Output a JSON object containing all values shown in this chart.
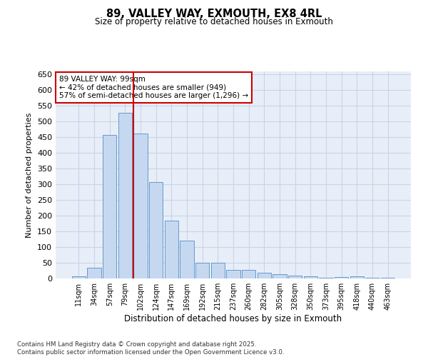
{
  "title": "89, VALLEY WAY, EXMOUTH, EX8 4RL",
  "subtitle": "Size of property relative to detached houses in Exmouth",
  "xlabel": "Distribution of detached houses by size in Exmouth",
  "ylabel": "Number of detached properties",
  "footer_line1": "Contains HM Land Registry data © Crown copyright and database right 2025.",
  "footer_line2": "Contains public sector information licensed under the Open Government Licence v3.0.",
  "categories": [
    "11sqm",
    "34sqm",
    "57sqm",
    "79sqm",
    "102sqm",
    "124sqm",
    "147sqm",
    "169sqm",
    "192sqm",
    "215sqm",
    "237sqm",
    "260sqm",
    "282sqm",
    "305sqm",
    "328sqm",
    "350sqm",
    "373sqm",
    "395sqm",
    "418sqm",
    "440sqm",
    "463sqm"
  ],
  "values": [
    7,
    35,
    457,
    528,
    463,
    308,
    184,
    120,
    50,
    50,
    27,
    27,
    18,
    13,
    9,
    6,
    2,
    5,
    7,
    2,
    3
  ],
  "bar_color": "#c5d8f0",
  "bar_edge_color": "#6699cc",
  "grid_color": "#c8d4e8",
  "background_color": "#e8eef8",
  "vline_color": "#cc0000",
  "vline_index": 4,
  "annotation_text": "89 VALLEY WAY: 99sqm\n← 42% of detached houses are smaller (949)\n57% of semi-detached houses are larger (1,296) →",
  "annotation_box_color": "#cc0000",
  "ylim": [
    0,
    660
  ],
  "yticks": [
    0,
    50,
    100,
    150,
    200,
    250,
    300,
    350,
    400,
    450,
    500,
    550,
    600,
    650
  ]
}
